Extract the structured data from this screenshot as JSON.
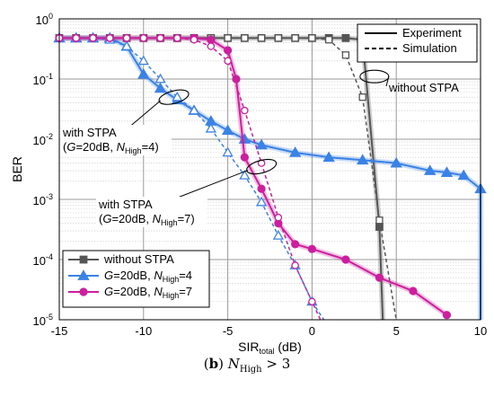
{
  "chart_data": {
    "type": "line",
    "xlabel_main": "SIR",
    "xlabel_sub": "total",
    "xlabel_unit": " (dB)",
    "ylabel": "BER",
    "xlim": [
      -15,
      10
    ],
    "ylim": [
      1e-05,
      1
    ],
    "yscale": "log",
    "grid": true,
    "x_ticks": [
      "-15",
      "-10",
      "-5",
      "0",
      "5",
      "10"
    ],
    "y_tick_mant": [
      "10",
      "10",
      "10",
      "10",
      "10",
      "10"
    ],
    "y_tick_exp": [
      "0",
      "-1",
      "-2",
      "-3",
      "-4",
      "-5"
    ],
    "style_legend": {
      "position": "top-right",
      "entries": [
        {
          "label": "Experiment",
          "style": "solid"
        },
        {
          "label": "Simulation",
          "style": "dashed"
        }
      ]
    },
    "series_legend": {
      "position": "bottom-left",
      "entries": [
        {
          "key": "none",
          "label": "without STPA",
          "color": "#555555",
          "marker": "square"
        },
        {
          "key": "n4",
          "label_pre": "G",
          "label_mid": "=20dB, ",
          "label_n": "N",
          "label_sub": "High",
          "label_post": "=4",
          "color": "#3b82e6",
          "marker": "triangle"
        },
        {
          "key": "n7",
          "label_pre": "G",
          "label_mid": "=20dB, ",
          "label_n": "N",
          "label_sub": "High",
          "label_post": "=7",
          "color": "#cc1f9e",
          "marker": "circle"
        }
      ]
    },
    "annotations": [
      {
        "key": "no_stpa",
        "text": "without STPA"
      },
      {
        "key": "stpa4",
        "line1": "with STPA",
        "line2_pre": "(",
        "line2_g": "G",
        "line2_mid": "=20dB, ",
        "line2_n": "N",
        "line2_sub": "High",
        "line2_post": "=4)"
      },
      {
        "key": "stpa7",
        "line1": "with STPA",
        "line2_pre": "(",
        "line2_g": "G",
        "line2_mid": "=20dB, ",
        "line2_n": "N",
        "line2_sub": "High",
        "line2_post": "=7)"
      }
    ],
    "series": [
      {
        "key": "none",
        "kind": "experiment",
        "color": "#555555",
        "marker": "square",
        "x": [
          -15,
          -14,
          -13,
          -12,
          -11,
          -10,
          -9,
          -8,
          -7,
          -6,
          -5,
          -4,
          -3,
          -2,
          -1,
          0,
          1,
          2,
          3,
          4,
          4.2
        ],
        "y": [
          0.48,
          0.48,
          0.48,
          0.48,
          0.48,
          0.48,
          0.48,
          0.48,
          0.48,
          0.48,
          0.48,
          0.48,
          0.48,
          0.48,
          0.48,
          0.48,
          0.48,
          0.48,
          0.45,
          0.00035,
          1e-05
        ]
      },
      {
        "key": "none",
        "kind": "simulation",
        "color": "#555555",
        "marker": "square-open",
        "x": [
          -14,
          -13,
          -12,
          -11,
          -10,
          -9,
          -8,
          -7,
          -6,
          -5,
          -4,
          -3,
          -2,
          -1,
          0,
          1,
          2,
          3,
          4,
          5
        ],
        "y": [
          0.48,
          0.48,
          0.48,
          0.48,
          0.48,
          0.48,
          0.48,
          0.48,
          0.48,
          0.48,
          0.48,
          0.48,
          0.48,
          0.48,
          0.48,
          0.45,
          0.25,
          0.05,
          0.00045,
          1e-05
        ]
      },
      {
        "key": "n4",
        "kind": "experiment",
        "color": "#3b82e6",
        "marker": "triangle",
        "x": [
          -15,
          -14,
          -13,
          -12,
          -11,
          -10,
          -9,
          -8,
          -7,
          -6,
          -5,
          -4,
          -3,
          -1,
          1,
          3,
          5,
          7,
          8,
          9,
          10,
          10
        ],
        "y": [
          0.48,
          0.48,
          0.48,
          0.48,
          0.35,
          0.12,
          0.07,
          0.045,
          0.03,
          0.02,
          0.014,
          0.01,
          0.008,
          0.006,
          0.005,
          0.0045,
          0.004,
          0.003,
          0.0028,
          0.0025,
          0.0015,
          1e-05
        ]
      },
      {
        "key": "n4",
        "kind": "simulation",
        "color": "#3b82e6",
        "marker": "triangle-open",
        "x": [
          -14,
          -13,
          -12,
          -11,
          -10,
          -9,
          -8,
          -7,
          -6,
          -5,
          -4,
          -3,
          -2,
          -1,
          0,
          0.7
        ],
        "y": [
          0.48,
          0.48,
          0.45,
          0.35,
          0.2,
          0.1,
          0.05,
          0.03,
          0.015,
          0.006,
          0.0025,
          0.0009,
          0.00025,
          8e-05,
          2e-05,
          1e-05
        ]
      },
      {
        "key": "n7",
        "kind": "experiment",
        "color": "#cc1f9e",
        "marker": "circle",
        "x": [
          -15,
          -14,
          -13,
          -12,
          -11,
          -10,
          -9,
          -8,
          -7,
          -6,
          -5,
          -4.5,
          -4,
          -3,
          -2,
          -1,
          0,
          2,
          4,
          6,
          8
        ],
        "y": [
          0.48,
          0.48,
          0.48,
          0.48,
          0.48,
          0.48,
          0.48,
          0.48,
          0.48,
          0.45,
          0.3,
          0.1,
          0.005,
          0.0015,
          0.0004,
          0.00018,
          0.00015,
          0.0001,
          5e-05,
          3e-05,
          1.2e-05
        ]
      },
      {
        "key": "n7",
        "kind": "simulation",
        "color": "#cc1f9e",
        "marker": "circle-open",
        "x": [
          -15,
          -14,
          -13,
          -12,
          -11,
          -10,
          -9,
          -8,
          -7,
          -6,
          -5,
          -4,
          -3,
          -2,
          -1,
          0,
          0.5
        ],
        "y": [
          0.48,
          0.48,
          0.48,
          0.48,
          0.48,
          0.48,
          0.48,
          0.48,
          0.45,
          0.35,
          0.2,
          0.03,
          0.004,
          0.0005,
          8e-05,
          2e-05,
          1e-05
        ]
      }
    ]
  },
  "caption": {
    "label": "b",
    "n": "N",
    "sub": "High",
    "post": " > 3"
  }
}
